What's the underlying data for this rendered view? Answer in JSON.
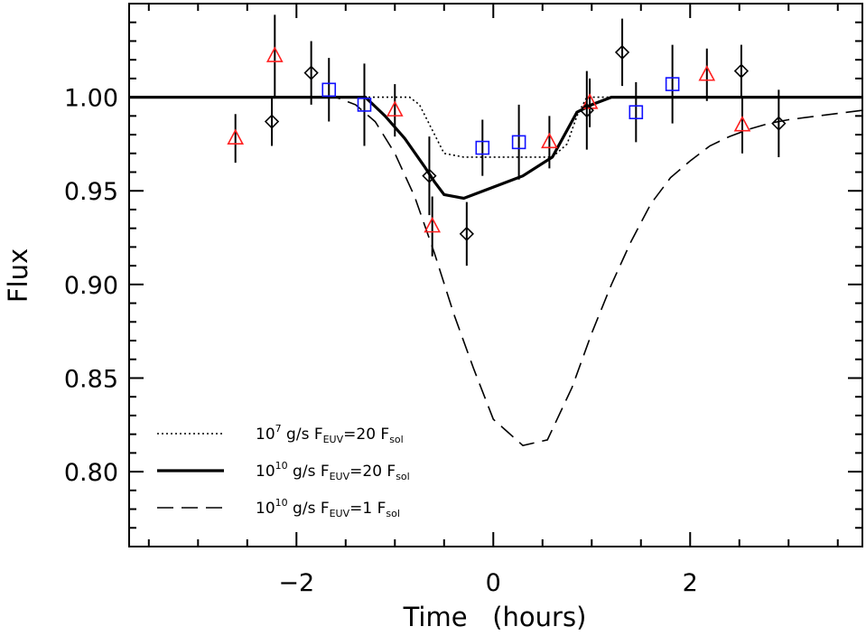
{
  "chart_data": {
    "type": "scatter",
    "xlabel": "Time (hours)",
    "ylabel": "Flux",
    "xlim": [
      -3.7,
      3.75
    ],
    "ylim": [
      0.76,
      1.05
    ],
    "x_ticks": [
      "-2",
      "0",
      "2"
    ],
    "y_ticks": [
      "0.80",
      "0.85",
      "0.90",
      "0.95",
      "1.00"
    ],
    "legend_position": "bottom-left",
    "grid": false,
    "model_series": [
      {
        "name_base": "10",
        "name_exp": "7",
        "name_mid": " g/s F",
        "name_sub1": "EUV",
        "name_tail": "=20 F",
        "name_sub2": "sol",
        "style": "dotted",
        "color": "#000000",
        "x": [
          -3.7,
          -1.05,
          -0.95,
          -0.85,
          -0.75,
          -0.5,
          -0.3,
          0.0,
          0.3,
          0.6,
          0.75,
          0.85,
          0.95,
          1.05,
          3.75
        ],
        "y": [
          1.0,
          1.0,
          1.0,
          1.0,
          0.996,
          0.97,
          0.968,
          0.968,
          0.968,
          0.968,
          0.975,
          0.99,
          1.0,
          1.0,
          1.0
        ]
      },
      {
        "name_base": "10",
        "name_exp": "10",
        "name_mid": " g/s F",
        "name_sub1": "EUV",
        "name_tail": "=20 F",
        "name_sub2": "sol",
        "style": "solid",
        "color": "#000000",
        "x": [
          -3.7,
          -1.5,
          -1.3,
          -1.1,
          -0.9,
          -0.7,
          -0.6,
          -0.5,
          -0.3,
          -0.1,
          0.1,
          0.3,
          0.6,
          0.85,
          1.0,
          1.2,
          3.75
        ],
        "y": [
          1.0,
          1.0,
          1.0,
          0.99,
          0.978,
          0.963,
          0.955,
          0.948,
          0.946,
          0.95,
          0.954,
          0.958,
          0.968,
          0.992,
          0.996,
          1.0,
          1.0
        ]
      },
      {
        "name_base": "10",
        "name_exp": "10",
        "name_mid": " g/s F",
        "name_sub1": "EUV",
        "name_tail": "=1 F",
        "name_sub2": "sol",
        "style": "dashed",
        "color": "#000000",
        "x": [
          -3.7,
          -1.6,
          -1.4,
          -1.2,
          -1.0,
          -0.8,
          -0.6,
          -0.4,
          -0.2,
          0.0,
          0.3,
          0.55,
          0.8,
          1.0,
          1.2,
          1.4,
          1.6,
          1.8,
          2.0,
          2.2,
          2.4,
          2.6,
          2.8,
          3.0,
          3.3,
          3.75
        ],
        "y": [
          1.0,
          1.0,
          0.996,
          0.987,
          0.97,
          0.947,
          0.917,
          0.884,
          0.855,
          0.828,
          0.814,
          0.817,
          0.845,
          0.874,
          0.9,
          0.923,
          0.943,
          0.957,
          0.966,
          0.974,
          0.979,
          0.983,
          0.986,
          0.988,
          0.99,
          0.993
        ]
      }
    ],
    "observations": [
      {
        "marker": "triangle",
        "color": "#ff2020",
        "points": [
          {
            "x": -2.62,
            "y": 0.978,
            "err": 0.013
          },
          {
            "x": -2.22,
            "y": 1.022,
            "err": 0.022
          },
          {
            "x": -1.0,
            "y": 0.993,
            "err": 0.014
          },
          {
            "x": -0.62,
            "y": 0.931,
            "err": 0.016
          },
          {
            "x": 0.57,
            "y": 0.976,
            "err": 0.014
          },
          {
            "x": 0.98,
            "y": 0.997,
            "err": 0.013
          },
          {
            "x": 2.17,
            "y": 1.012,
            "err": 0.014
          },
          {
            "x": 2.53,
            "y": 0.985,
            "err": 0.015
          }
        ]
      },
      {
        "marker": "diamond",
        "color": "#000000",
        "points": [
          {
            "x": -2.25,
            "y": 0.987,
            "err": 0.013
          },
          {
            "x": -1.85,
            "y": 1.013,
            "err": 0.017
          },
          {
            "x": -0.65,
            "y": 0.958,
            "err": 0.021
          },
          {
            "x": -0.27,
            "y": 0.927,
            "err": 0.017
          },
          {
            "x": 0.95,
            "y": 0.993,
            "err": 0.021
          },
          {
            "x": 1.31,
            "y": 1.024,
            "err": 0.018
          },
          {
            "x": 2.52,
            "y": 1.014,
            "err": 0.014
          },
          {
            "x": 2.9,
            "y": 0.986,
            "err": 0.018
          }
        ]
      },
      {
        "marker": "square",
        "color": "#1010ff",
        "points": [
          {
            "x": -1.67,
            "y": 1.004,
            "err": 0.017
          },
          {
            "x": -1.31,
            "y": 0.996,
            "err": 0.022
          },
          {
            "x": -0.11,
            "y": 0.973,
            "err": 0.015
          },
          {
            "x": 0.26,
            "y": 0.976,
            "err": 0.02
          },
          {
            "x": 1.45,
            "y": 0.992,
            "err": 0.016
          },
          {
            "x": 1.82,
            "y": 1.007,
            "err": 0.021
          }
        ]
      }
    ]
  }
}
